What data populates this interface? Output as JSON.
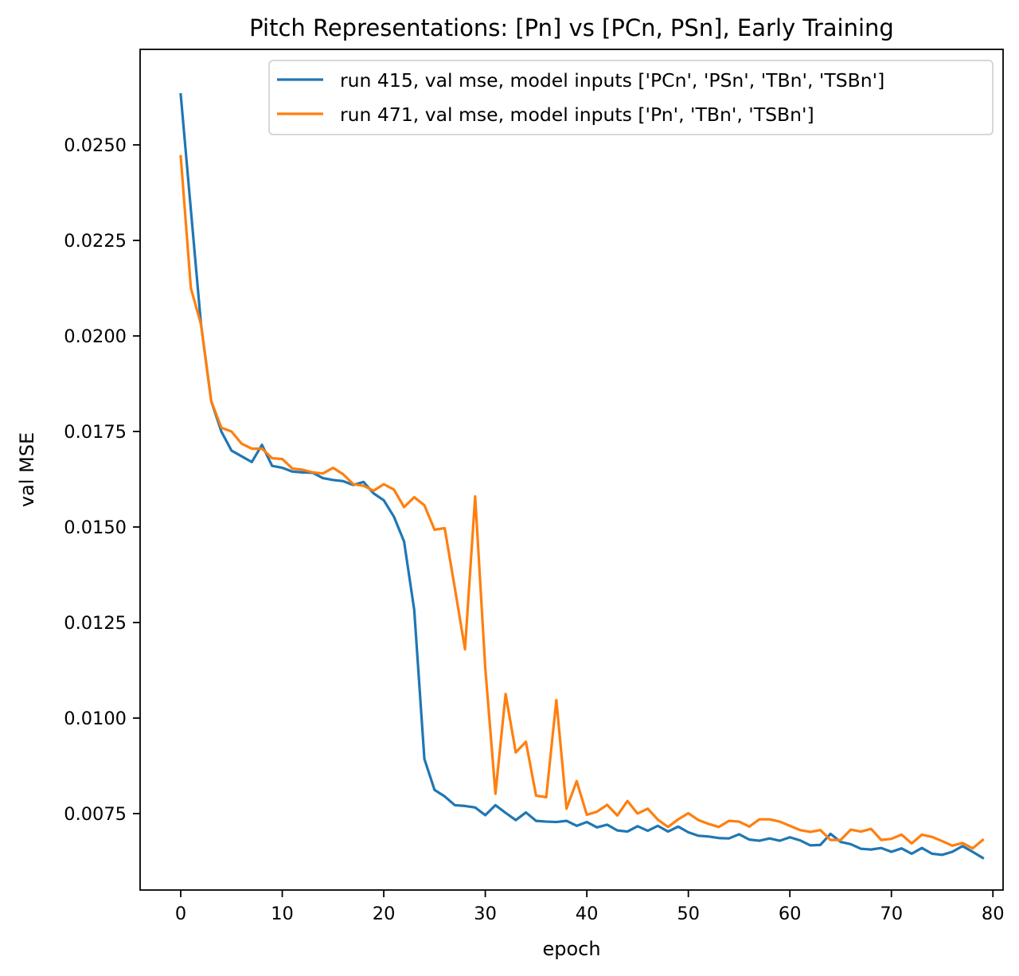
{
  "chart_data": {
    "type": "line",
    "title": "Pitch Representations: [Pn] vs [PCn, PSn], Early Training",
    "xlabel": "epoch",
    "ylabel": "val MSE",
    "xlim": [
      -4,
      81
    ],
    "ylim": [
      0.0055,
      0.0275
    ],
    "xticks": [
      0,
      10,
      20,
      30,
      40,
      50,
      60,
      70,
      80
    ],
    "xtick_labels": [
      "0",
      "10",
      "20",
      "30",
      "40",
      "50",
      "60",
      "70",
      "80"
    ],
    "yticks": [
      0.0075,
      0.01,
      0.0125,
      0.015,
      0.0175,
      0.02,
      0.0225,
      0.025
    ],
    "ytick_labels": [
      "0.0075",
      "0.0100",
      "0.0125",
      "0.0150",
      "0.0175",
      "0.0200",
      "0.0225",
      "0.0250"
    ],
    "grid": false,
    "legend_position": "top-right",
    "series": [
      {
        "name": "run 415, val mse, model inputs ['PCn', 'PSn', 'TBn', 'TSBn']",
        "color": "#1f77b4",
        "x": [
          0,
          1,
          2,
          3,
          4,
          5,
          6,
          7,
          8,
          9,
          10,
          11,
          12,
          13,
          14,
          15,
          16,
          17,
          18,
          19,
          20,
          21,
          22,
          23,
          24,
          25,
          26,
          27,
          28,
          29,
          30,
          31,
          32,
          33,
          34,
          35,
          36,
          37,
          38,
          39,
          40,
          41,
          42,
          43,
          44,
          45,
          46,
          47,
          48,
          49,
          50,
          51,
          52,
          53,
          54,
          55,
          56,
          57,
          58,
          59,
          60,
          61,
          62,
          63,
          64,
          65,
          66,
          67,
          68,
          69,
          70,
          71,
          72,
          73,
          74,
          75,
          76,
          77,
          78,
          79
        ],
        "y": [
          0.02632,
          0.0233,
          0.0203,
          0.0183,
          0.0175,
          0.017,
          0.01685,
          0.0167,
          0.01715,
          0.0166,
          0.01655,
          0.01645,
          0.01643,
          0.01642,
          0.01628,
          0.01623,
          0.0162,
          0.0161,
          0.01618,
          0.01588,
          0.0157,
          0.01527,
          0.01462,
          0.01283,
          0.00893,
          0.00812,
          0.00795,
          0.00772,
          0.0077,
          0.00766,
          0.00746,
          0.00772,
          0.00752,
          0.00733,
          0.00753,
          0.00731,
          0.00729,
          0.00728,
          0.00731,
          0.00718,
          0.00728,
          0.00714,
          0.00721,
          0.00706,
          0.00703,
          0.00717,
          0.00705,
          0.00718,
          0.00703,
          0.00716,
          0.00701,
          0.00692,
          0.0069,
          0.00686,
          0.00685,
          0.00696,
          0.00682,
          0.00679,
          0.00685,
          0.00679,
          0.00688,
          0.0068,
          0.00667,
          0.00668,
          0.00697,
          0.00676,
          0.0067,
          0.00658,
          0.00656,
          0.0066,
          0.0065,
          0.00659,
          0.00645,
          0.0066,
          0.00645,
          0.00642,
          0.0065,
          0.00665,
          0.0065,
          0.00634
        ]
      },
      {
        "name": "run 471, val mse, model inputs ['Pn', 'TBn', 'TSBn']",
        "color": "#ff7f0e",
        "x": [
          0,
          1,
          2,
          3,
          4,
          5,
          6,
          7,
          8,
          9,
          10,
          11,
          12,
          13,
          14,
          15,
          16,
          17,
          18,
          19,
          20,
          21,
          22,
          23,
          24,
          25,
          26,
          27,
          28,
          29,
          30,
          31,
          32,
          33,
          34,
          35,
          36,
          37,
          38,
          39,
          40,
          41,
          42,
          43,
          44,
          45,
          46,
          47,
          48,
          49,
          50,
          51,
          52,
          53,
          54,
          55,
          56,
          57,
          58,
          59,
          60,
          61,
          62,
          63,
          64,
          65,
          66,
          67,
          68,
          69,
          70,
          71,
          72,
          73,
          74,
          75,
          76,
          77,
          78,
          79
        ],
        "y": [
          0.0247,
          0.02125,
          0.0203,
          0.0183,
          0.0176,
          0.0175,
          0.01718,
          0.01705,
          0.01705,
          0.0168,
          0.01678,
          0.01653,
          0.0165,
          0.01643,
          0.0164,
          0.01655,
          0.01638,
          0.01612,
          0.01608,
          0.01595,
          0.01612,
          0.01598,
          0.01552,
          0.01578,
          0.01557,
          0.01493,
          0.01497,
          0.0134,
          0.0118,
          0.0158,
          0.0113,
          0.00802,
          0.01063,
          0.0091,
          0.00938,
          0.00797,
          0.00793,
          0.01047,
          0.00763,
          0.00835,
          0.00747,
          0.00755,
          0.00773,
          0.00745,
          0.00783,
          0.0075,
          0.00763,
          0.00734,
          0.00715,
          0.00735,
          0.00751,
          0.00733,
          0.00723,
          0.00715,
          0.00731,
          0.00729,
          0.00716,
          0.00735,
          0.00735,
          0.00729,
          0.00718,
          0.00707,
          0.00702,
          0.00707,
          0.00681,
          0.00681,
          0.00708,
          0.00703,
          0.0071,
          0.00681,
          0.00684,
          0.00695,
          0.00672,
          0.00695,
          0.00689,
          0.00678,
          0.00666,
          0.00673,
          0.00659,
          0.00681
        ]
      }
    ]
  }
}
